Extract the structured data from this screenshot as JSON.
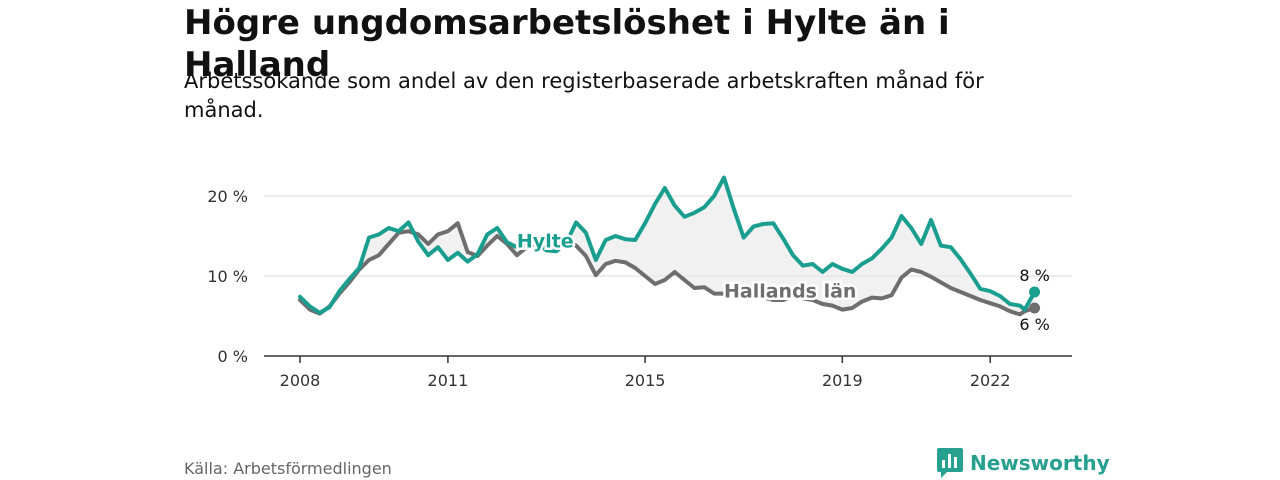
{
  "header": {
    "title": "Högre ungdomsarbetslöshet i Hylte än i Halland",
    "subtitle": "Arbetssökande som andel av den registerbaserade arbetskraften månad för månad."
  },
  "footer": {
    "source": "Källa: Arbetsförmedlingen",
    "brand": "Newsworthy"
  },
  "colors": {
    "hylte": "#1a9e8f",
    "halland": "#6e6e6e",
    "fill": "#e8e8e8",
    "grid": "#d9d9d9"
  },
  "chart_data": {
    "type": "line",
    "title": "Högre ungdomsarbetslöshet i Hylte än i Halland",
    "xlabel": "",
    "ylabel": "",
    "xlim": [
      2008,
      2023.2
    ],
    "ylim": [
      0,
      20
    ],
    "x_ticks": [
      {
        "value": 2008,
        "label": "2008"
      },
      {
        "value": 2011,
        "label": "2011"
      },
      {
        "value": 2015,
        "label": "2015"
      },
      {
        "value": 2019,
        "label": "2019"
      },
      {
        "value": 2022,
        "label": "2022"
      }
    ],
    "y_ticks": [
      {
        "value": 0,
        "label": "0 %"
      },
      {
        "value": 10,
        "label": "10 %"
      },
      {
        "value": 20,
        "label": "20 %"
      }
    ],
    "grid": true,
    "series": [
      {
        "name": "Hylte",
        "label": "Hylte",
        "end_label": "8 %",
        "x": [
          2008.0,
          2008.2,
          2008.4,
          2008.6,
          2008.8,
          2009.0,
          2009.2,
          2009.4,
          2009.6,
          2009.8,
          2010.0,
          2010.2,
          2010.4,
          2010.6,
          2010.8,
          2011.0,
          2011.2,
          2011.4,
          2011.6,
          2011.8,
          2012.0,
          2012.2,
          2012.4,
          2012.6,
          2012.8,
          2013.0,
          2013.2,
          2013.4,
          2013.6,
          2013.8,
          2014.0,
          2014.2,
          2014.4,
          2014.6,
          2014.8,
          2015.0,
          2015.2,
          2015.4,
          2015.6,
          2015.8,
          2016.0,
          2016.2,
          2016.4,
          2016.6,
          2016.8,
          2017.0,
          2017.2,
          2017.4,
          2017.6,
          2017.8,
          2018.0,
          2018.2,
          2018.4,
          2018.6,
          2018.8,
          2019.0,
          2019.2,
          2019.4,
          2019.6,
          2019.8,
          2020.0,
          2020.2,
          2020.4,
          2020.6,
          2020.8,
          2021.0,
          2021.2,
          2021.4,
          2021.6,
          2021.8,
          2022.0,
          2022.2,
          2022.4,
          2022.6,
          2022.7,
          2022.9
        ],
        "values": [
          7.4,
          6.2,
          5.4,
          6.1,
          8.1,
          9.6,
          11.0,
          14.8,
          15.2,
          16.0,
          15.6,
          16.7,
          14.3,
          12.6,
          13.6,
          12.0,
          12.9,
          11.8,
          12.7,
          15.2,
          16.0,
          14.2,
          13.6,
          14.3,
          14.2,
          13.2,
          13.1,
          14.1,
          16.7,
          15.4,
          12.0,
          14.5,
          15.0,
          14.6,
          14.5,
          16.6,
          19.0,
          21.0,
          18.8,
          17.4,
          17.9,
          18.6,
          20.0,
          22.3,
          18.4,
          14.8,
          16.2,
          16.5,
          16.6,
          14.7,
          12.6,
          11.3,
          11.5,
          10.5,
          11.5,
          10.9,
          10.5,
          11.5,
          12.2,
          13.4,
          14.8,
          17.5,
          16.0,
          14.0,
          17.0,
          13.8,
          13.6,
          12.1,
          10.3,
          8.4,
          8.1,
          7.5,
          6.5,
          6.3,
          5.8,
          8.0
        ]
      },
      {
        "name": "Hallands län",
        "label": "Hallands län",
        "end_label": "6 %",
        "x": [
          2008.0,
          2008.2,
          2008.4,
          2008.6,
          2008.8,
          2009.0,
          2009.2,
          2009.4,
          2009.6,
          2009.8,
          2010.0,
          2010.2,
          2010.4,
          2010.6,
          2010.8,
          2011.0,
          2011.2,
          2011.4,
          2011.6,
          2011.8,
          2012.0,
          2012.2,
          2012.4,
          2012.6,
          2012.8,
          2013.0,
          2013.2,
          2013.4,
          2013.6,
          2013.8,
          2014.0,
          2014.2,
          2014.4,
          2014.6,
          2014.8,
          2015.0,
          2015.2,
          2015.4,
          2015.6,
          2015.8,
          2016.0,
          2016.2,
          2016.4,
          2016.6,
          2016.8,
          2017.0,
          2017.2,
          2017.4,
          2017.6,
          2017.8,
          2018.0,
          2018.2,
          2018.4,
          2018.6,
          2018.8,
          2019.0,
          2019.2,
          2019.4,
          2019.6,
          2019.8,
          2020.0,
          2020.2,
          2020.4,
          2020.6,
          2020.8,
          2021.0,
          2021.2,
          2021.4,
          2021.6,
          2021.8,
          2022.0,
          2022.2,
          2022.4,
          2022.6,
          2022.7,
          2022.9
        ],
        "values": [
          7.0,
          5.8,
          5.3,
          6.2,
          7.8,
          9.2,
          10.8,
          12.0,
          12.6,
          14.0,
          15.4,
          15.6,
          15.2,
          14.0,
          15.2,
          15.6,
          16.6,
          13.0,
          12.5,
          13.8,
          15.0,
          14.0,
          12.6,
          13.6,
          14.0,
          13.8,
          13.5,
          14.5,
          13.8,
          12.5,
          10.1,
          11.5,
          11.9,
          11.7,
          11.0,
          10.0,
          9.0,
          9.5,
          10.5,
          9.5,
          8.5,
          8.6,
          7.8,
          7.8,
          8.0,
          7.8,
          7.5,
          7.3,
          7.0,
          7.0,
          7.5,
          7.2,
          7.0,
          6.5,
          6.3,
          5.8,
          6.0,
          6.8,
          7.3,
          7.2,
          7.6,
          9.8,
          10.8,
          10.5,
          9.9,
          9.2,
          8.5,
          8.0,
          7.5,
          7.0,
          6.6,
          6.2,
          5.6,
          5.2,
          5.6,
          6.0
        ]
      }
    ]
  }
}
